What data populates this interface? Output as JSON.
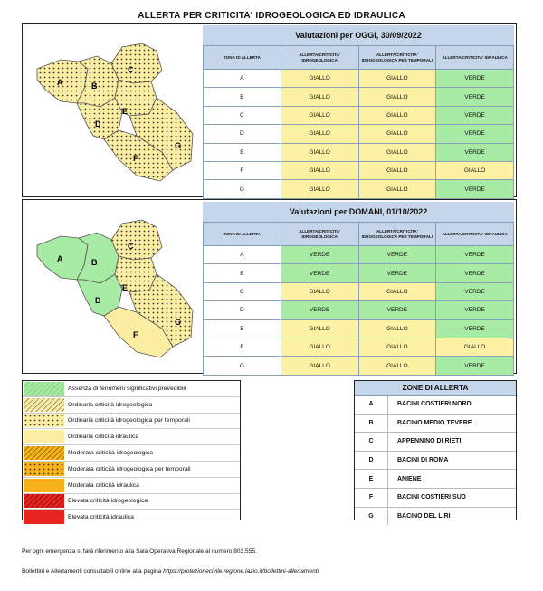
{
  "title": "ALLERTA PER CRITICITA' IDROGEOLOGICA ED IDRAULICA",
  "colors": {
    "giallo": "#fdf2a4",
    "verde": "#a8eba4",
    "header": "#c5d6ea"
  },
  "today": {
    "heading": "Valutazioni per OGGI, 30/09/2022",
    "columns": [
      "ZONA DI ALLERTA",
      "ALLERTA/CRITICITA' IDROGEOLOGICA",
      "ALLERTA/CRITICITA' IDROGEOLOGICA PER TEMPORALI",
      "ALLERTA/CRITICITA' IDRAULICA"
    ],
    "rows": [
      {
        "zone": "A",
        "idro": "GIALLO",
        "temp": "GIALLO",
        "idra": "VERDE"
      },
      {
        "zone": "B",
        "idro": "GIALLO",
        "temp": "GIALLO",
        "idra": "VERDE"
      },
      {
        "zone": "C",
        "idro": "GIALLO",
        "temp": "GIALLO",
        "idra": "VERDE"
      },
      {
        "zone": "D",
        "idro": "GIALLO",
        "temp": "GIALLO",
        "idra": "VERDE"
      },
      {
        "zone": "E",
        "idro": "GIALLO",
        "temp": "GIALLO",
        "idra": "VERDE"
      },
      {
        "zone": "F",
        "idro": "GIALLO",
        "temp": "GIALLO",
        "idra": "GIALLO"
      },
      {
        "zone": "G",
        "idro": "GIALLO",
        "temp": "GIALLO",
        "idra": "VERDE"
      }
    ],
    "map_labels": [
      "A",
      "B",
      "C",
      "D",
      "E",
      "F",
      "G"
    ]
  },
  "tomorrow": {
    "heading": "Valutazioni per DOMANI, 01/10/2022",
    "columns": [
      "ZONA DI ALLERTA",
      "ALLERTA/CRITICITA' IDROGEOLOGICA",
      "ALLERTA/CRITICITA' IDROGEOLOGICA PER TEMPORALI",
      "ALLERTA/CRITICITA' IDRAULICA"
    ],
    "rows": [
      {
        "zone": "A",
        "idro": "VERDE",
        "temp": "VERDE",
        "idra": "VERDE"
      },
      {
        "zone": "B",
        "idro": "VERDE",
        "temp": "VERDE",
        "idra": "VERDE"
      },
      {
        "zone": "C",
        "idro": "GIALLO",
        "temp": "GIALLO",
        "idra": "VERDE"
      },
      {
        "zone": "D",
        "idro": "VERDE",
        "temp": "VERDE",
        "idra": "VERDE"
      },
      {
        "zone": "E",
        "idro": "GIALLO",
        "temp": "GIALLO",
        "idra": "VERDE"
      },
      {
        "zone": "F",
        "idro": "GIALLO",
        "temp": "GIALLO",
        "idra": "GIALLO"
      },
      {
        "zone": "G",
        "idro": "GIALLO",
        "temp": "GIALLO",
        "idra": "VERDE"
      }
    ],
    "map_labels": [
      "A",
      "B",
      "C",
      "D",
      "E",
      "F",
      "G"
    ]
  },
  "legend": [
    {
      "label": "Assenza di fenomeni significativi prevedibili",
      "pattern": "green-hatch"
    },
    {
      "label": "Ordinaria criticità idrogeologica",
      "pattern": "yellow-hatch"
    },
    {
      "label": "Ordinaria criticità idrogeologica per temporali",
      "pattern": "yellow-dots"
    },
    {
      "label": "Ordinaria criticità idraulica",
      "pattern": "yellow-solid"
    },
    {
      "label": "Moderata criticità idrogeologica",
      "pattern": "orange-hatch"
    },
    {
      "label": "Moderata criticità idrogeologica per temporali",
      "pattern": "orange-dots"
    },
    {
      "label": "Moderata criticità idraulica",
      "pattern": "orange-solid"
    },
    {
      "label": "Elevata criticità idrogeologica",
      "pattern": "red-hatch"
    },
    {
      "label": "Elevata criticità idraulica",
      "pattern": "red-solid"
    }
  ],
  "zones": {
    "title": "ZONE DI ALLERTA",
    "items": [
      {
        "letter": "A",
        "name": "BACINI COSTIERI NORD"
      },
      {
        "letter": "B",
        "name": "BACINO MEDIO TEVERE"
      },
      {
        "letter": "C",
        "name": "APPENNINO DI RIETI"
      },
      {
        "letter": "D",
        "name": "BACINI DI ROMA"
      },
      {
        "letter": "E",
        "name": "ANIENE"
      },
      {
        "letter": "F",
        "name": "BACINI COSTIERI SUD"
      },
      {
        "letter": "G",
        "name": "BACINO DEL LIRI"
      }
    ]
  },
  "footer": {
    "emergency": "Per ogni emergenza si farà riferimento alla Sala Operativa Regionale al numero 803.555.",
    "bulletin_prefix": "Bollettini e Allertamenti consultabili online alla pagina ",
    "bulletin_url": "https://protezionecivile.regione.lazio.it/bollettini-allertamenti"
  }
}
